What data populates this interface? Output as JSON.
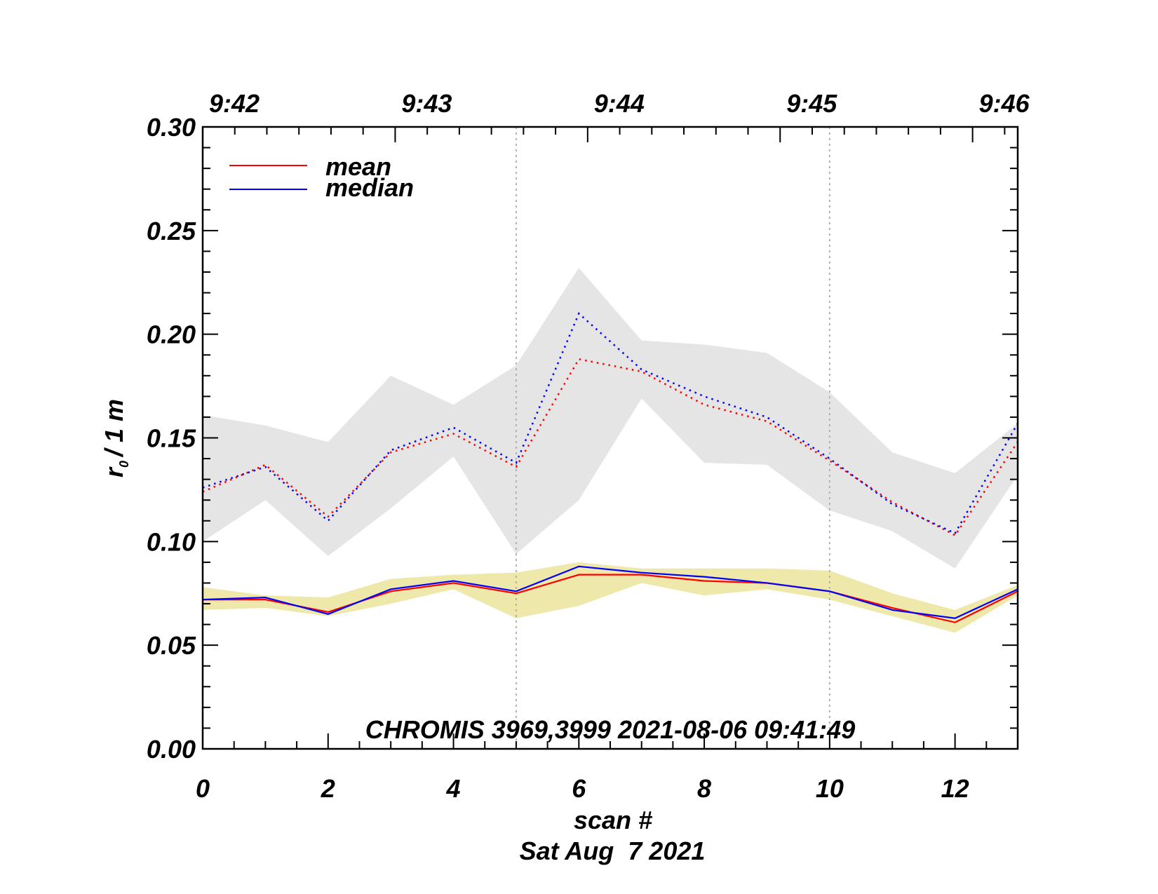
{
  "chart_data": {
    "type": "line",
    "title": "",
    "annotation": "CHROMIS 3969,3999 2021-08-06 09:41:49",
    "xlabel": "scan #",
    "xlabel2": "Sat Aug  7 2021",
    "ylabel": "r₀ / 1 m",
    "ylabel_main": "r",
    "ylabel_sub": "0",
    "ylabel_rest": "/ 1 m",
    "xlim": [
      0,
      13
    ],
    "ylim": [
      0.0,
      0.3
    ],
    "x_ticks": [
      0,
      2,
      4,
      6,
      8,
      10,
      12
    ],
    "x_tick_labels": [
      "0",
      "2",
      "4",
      "6",
      "8",
      "10",
      "12"
    ],
    "y_ticks": [
      0.0,
      0.05,
      0.1,
      0.15,
      0.2,
      0.25,
      0.3
    ],
    "y_tick_labels": [
      "0.00",
      "0.05",
      "0.10",
      "0.15",
      "0.20",
      "0.25",
      "0.30"
    ],
    "top_axis": {
      "label_positions": [
        0,
        3.07,
        6.14,
        9.21,
        12.28
      ],
      "labels": [
        "9:42",
        "9:43",
        "9:44",
        "9:45",
        "9:46"
      ]
    },
    "vertical_markers": [
      5,
      10
    ],
    "grid": false,
    "legend": {
      "placement": "top-left",
      "entries": [
        {
          "label": "mean",
          "color": "#ff0000"
        },
        {
          "label": "median",
          "color": "#0000ff"
        }
      ]
    },
    "x": [
      0,
      1,
      2,
      3,
      4,
      5,
      6,
      7,
      8,
      9,
      10,
      11,
      12,
      13
    ],
    "bands": [
      {
        "name": "upper-group-range",
        "color": "#e5e5e5",
        "upper": [
          0.161,
          0.156,
          0.148,
          0.18,
          0.166,
          0.185,
          0.232,
          0.197,
          0.195,
          0.191,
          0.172,
          0.143,
          0.133,
          0.157
        ],
        "lower": [
          0.1,
          0.12,
          0.093,
          0.116,
          0.141,
          0.094,
          0.12,
          0.169,
          0.138,
          0.137,
          0.115,
          0.105,
          0.087,
          0.132
        ]
      },
      {
        "name": "lower-group-range",
        "color": "#eee8aa",
        "upper": [
          0.078,
          0.074,
          0.073,
          0.082,
          0.084,
          0.085,
          0.09,
          0.087,
          0.087,
          0.087,
          0.086,
          0.075,
          0.067,
          0.079
        ],
        "lower": [
          0.067,
          0.068,
          0.064,
          0.07,
          0.077,
          0.063,
          0.069,
          0.08,
          0.074,
          0.077,
          0.072,
          0.064,
          0.056,
          0.074
        ]
      }
    ],
    "series": [
      {
        "name": "mean (dotted)",
        "color": "#ff0000",
        "style": "dotted",
        "values": [
          0.124,
          0.137,
          0.112,
          0.143,
          0.152,
          0.136,
          0.188,
          0.182,
          0.166,
          0.158,
          0.139,
          0.119,
          0.103,
          0.148
        ]
      },
      {
        "name": "median (dotted)",
        "color": "#0000ff",
        "style": "dotted",
        "values": [
          0.126,
          0.136,
          0.11,
          0.144,
          0.155,
          0.138,
          0.21,
          0.183,
          0.17,
          0.16,
          0.14,
          0.118,
          0.104,
          0.157
        ]
      },
      {
        "name": "mean",
        "color": "#ff0000",
        "style": "solid",
        "values": [
          0.072,
          0.072,
          0.066,
          0.076,
          0.08,
          0.075,
          0.084,
          0.084,
          0.081,
          0.08,
          0.076,
          0.068,
          0.061,
          0.076
        ]
      },
      {
        "name": "median",
        "color": "#0000ff",
        "style": "solid",
        "values": [
          0.072,
          0.073,
          0.065,
          0.077,
          0.081,
          0.076,
          0.088,
          0.085,
          0.083,
          0.08,
          0.076,
          0.067,
          0.063,
          0.077
        ]
      }
    ]
  }
}
